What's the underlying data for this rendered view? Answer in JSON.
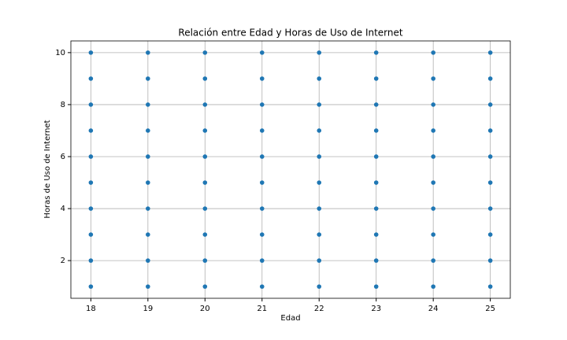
{
  "chart_data": {
    "type": "scatter",
    "title": "Relación entre Edad y Horas de Uso de Internet",
    "x_label": "Edad",
    "y_label": "Horas de Uso de Internet",
    "color": "#1f77b4",
    "grid": true,
    "xlim": [
      17.65,
      25.35
    ],
    "xticks": [
      18,
      19,
      20,
      21,
      22,
      23,
      24,
      25
    ],
    "ylim": [
      0.55,
      10.45
    ],
    "yticks": [
      2,
      4,
      6,
      8,
      10
    ],
    "x": [
      18,
      18,
      18,
      18,
      18,
      18,
      18,
      18,
      18,
      18,
      19,
      19,
      19,
      19,
      19,
      19,
      19,
      19,
      19,
      19,
      20,
      20,
      20,
      20,
      20,
      20,
      20,
      20,
      20,
      20,
      21,
      21,
      21,
      21,
      21,
      21,
      21,
      21,
      21,
      21,
      22,
      22,
      22,
      22,
      22,
      22,
      22,
      22,
      22,
      22,
      23,
      23,
      23,
      23,
      23,
      23,
      23,
      23,
      23,
      23,
      24,
      24,
      24,
      24,
      24,
      24,
      24,
      24,
      24,
      24,
      25,
      25,
      25,
      25,
      25,
      25,
      25,
      25,
      25,
      25
    ],
    "y": [
      1,
      2,
      3,
      4,
      5,
      6,
      7,
      8,
      9,
      10,
      1,
      2,
      3,
      4,
      5,
      6,
      7,
      8,
      9,
      10,
      1,
      2,
      3,
      4,
      5,
      6,
      7,
      8,
      9,
      10,
      1,
      2,
      3,
      4,
      5,
      6,
      7,
      8,
      9,
      10,
      1,
      2,
      3,
      4,
      5,
      6,
      7,
      8,
      9,
      10,
      1,
      2,
      3,
      4,
      5,
      6,
      7,
      8,
      9,
      10,
      1,
      2,
      3,
      4,
      5,
      6,
      7,
      8,
      9,
      10,
      1,
      2,
      3,
      4,
      5,
      6,
      7,
      8,
      9,
      10
    ]
  }
}
